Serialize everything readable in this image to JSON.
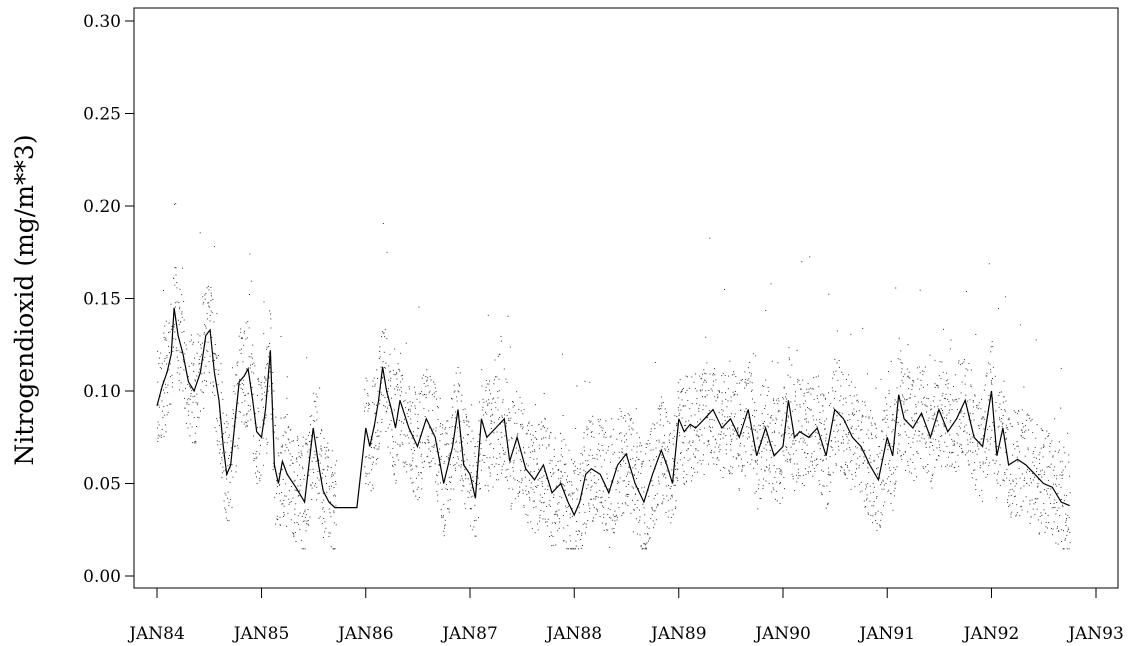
{
  "chart_data": {
    "type": "line",
    "title": "",
    "xlabel": "",
    "ylabel": "Nitrogendioxid  (mg/m**3)",
    "ylim": [
      0.0,
      0.3
    ],
    "xlim": [
      "1984-01-01",
      "1993-01-01"
    ],
    "yticks": [
      0.0,
      0.05,
      0.1,
      0.15,
      0.2,
      0.25,
      0.3
    ],
    "ytick_labels": [
      "0.00",
      "0.05",
      "0.10",
      "0.15",
      "0.20",
      "0.25",
      "0.30"
    ],
    "xticks": [
      "1984-01-01",
      "1985-01-01",
      "1986-01-01",
      "1987-01-01",
      "1988-01-01",
      "1989-01-01",
      "1990-01-01",
      "1991-01-01",
      "1992-01-01",
      "1993-01-01"
    ],
    "xtick_labels": [
      "JAN84",
      "JAN85",
      "JAN86",
      "JAN87",
      "JAN88",
      "JAN89",
      "JAN90",
      "JAN91",
      "JAN92",
      "JAN93"
    ],
    "grid": false,
    "legend": "none",
    "colors": {
      "line": "#000000",
      "points": "#333333"
    },
    "series": [
      {
        "kind": "line",
        "x": [
          "1984-01-01",
          "1984-01-20",
          "1984-02-05",
          "1984-02-20",
          "1984-03-01",
          "1984-03-15",
          "1984-04-01",
          "1984-04-20",
          "1984-05-10",
          "1984-06-01",
          "1984-06-20",
          "1984-07-05",
          "1984-07-20",
          "1984-08-05",
          "1984-08-20",
          "1984-09-01",
          "1984-09-15",
          "1984-10-01",
          "1984-10-15",
          "1984-11-01",
          "1984-11-15",
          "1984-12-01",
          "1984-12-15",
          "1985-01-01",
          "1985-01-15",
          "1985-02-01",
          "1985-02-15",
          "1985-03-01",
          "1985-03-15",
          "1985-04-01",
          "1985-05-01",
          "1985-06-01",
          "1985-07-01",
          "1985-07-20",
          "1985-08-05",
          "1985-08-25",
          "1985-09-15",
          "1985-10-01",
          "1985-11-01",
          "1985-12-01",
          "1986-01-01",
          "1986-01-15",
          "1986-02-01",
          "1986-02-15",
          "1986-03-01",
          "1986-03-15",
          "1986-04-01",
          "1986-04-15",
          "1986-05-01",
          "1986-06-01",
          "1986-07-01",
          "1986-08-01",
          "1986-09-01",
          "1986-10-01",
          "1986-11-01",
          "1986-11-20",
          "1986-12-10",
          "1987-01-01",
          "1987-01-20",
          "1987-02-10",
          "1987-03-01",
          "1987-04-01",
          "1987-05-01",
          "1987-05-20",
          "1987-06-15",
          "1987-07-15",
          "1987-08-15",
          "1987-09-15",
          "1987-10-15",
          "1987-11-15",
          "1987-12-10",
          "1988-01-01",
          "1988-01-20",
          "1988-02-10",
          "1988-03-01",
          "1988-04-01",
          "1988-05-01",
          "1988-06-01",
          "1988-07-01",
          "1988-08-01",
          "1988-09-01",
          "1988-10-01",
          "1988-11-01",
          "1988-11-20",
          "1988-12-10",
          "1989-01-01",
          "1989-01-20",
          "1989-02-10",
          "1989-03-01",
          "1989-04-01",
          "1989-05-01",
          "1989-06-01",
          "1989-07-01",
          "1989-08-01",
          "1989-09-01",
          "1989-10-01",
          "1989-11-01",
          "1989-12-01",
          "1990-01-01",
          "1990-01-20",
          "1990-02-10",
          "1990-03-01",
          "1990-04-01",
          "1990-05-01",
          "1990-06-01",
          "1990-07-01",
          "1990-08-01",
          "1990-09-01",
          "1990-10-01",
          "1990-11-01",
          "1990-12-01",
          "1991-01-01",
          "1991-01-20",
          "1991-02-10",
          "1991-03-01",
          "1991-04-01",
          "1991-05-01",
          "1991-06-01",
          "1991-07-01",
          "1991-08-01",
          "1991-09-01",
          "1991-10-01",
          "1991-11-01",
          "1991-12-01",
          "1992-01-01",
          "1992-01-20",
          "1992-02-10",
          "1992-03-01",
          "1992-04-01",
          "1992-05-01",
          "1992-06-01",
          "1992-07-01",
          "1992-08-01",
          "1992-09-01",
          "1992-10-01"
        ],
        "y": [
          0.092,
          0.103,
          0.11,
          0.12,
          0.145,
          0.13,
          0.12,
          0.105,
          0.1,
          0.11,
          0.13,
          0.133,
          0.11,
          0.095,
          0.07,
          0.055,
          0.06,
          0.085,
          0.105,
          0.108,
          0.112,
          0.095,
          0.078,
          0.075,
          0.09,
          0.122,
          0.06,
          0.05,
          0.062,
          0.055,
          0.048,
          0.04,
          0.08,
          0.06,
          0.046,
          0.04,
          0.037,
          0.037,
          0.037,
          0.037,
          0.08,
          0.07,
          0.082,
          0.095,
          0.113,
          0.1,
          0.09,
          0.08,
          0.095,
          0.08,
          0.07,
          0.085,
          0.075,
          0.05,
          0.07,
          0.09,
          0.06,
          0.055,
          0.042,
          0.085,
          0.075,
          0.08,
          0.085,
          0.062,
          0.075,
          0.058,
          0.052,
          0.06,
          0.045,
          0.05,
          0.04,
          0.033,
          0.04,
          0.055,
          0.058,
          0.055,
          0.045,
          0.06,
          0.066,
          0.05,
          0.04,
          0.055,
          0.068,
          0.06,
          0.05,
          0.085,
          0.078,
          0.082,
          0.08,
          0.085,
          0.09,
          0.08,
          0.085,
          0.075,
          0.09,
          0.065,
          0.08,
          0.065,
          0.07,
          0.095,
          0.075,
          0.078,
          0.075,
          0.08,
          0.065,
          0.09,
          0.085,
          0.075,
          0.07,
          0.06,
          0.052,
          0.075,
          0.065,
          0.098,
          0.085,
          0.08,
          0.088,
          0.075,
          0.09,
          0.078,
          0.085,
          0.095,
          0.075,
          0.07,
          0.1,
          0.065,
          0.08,
          0.06,
          0.063,
          0.06,
          0.055,
          0.05,
          0.048,
          0.04,
          0.038
        ]
      }
    ],
    "points_note": ""
  }
}
